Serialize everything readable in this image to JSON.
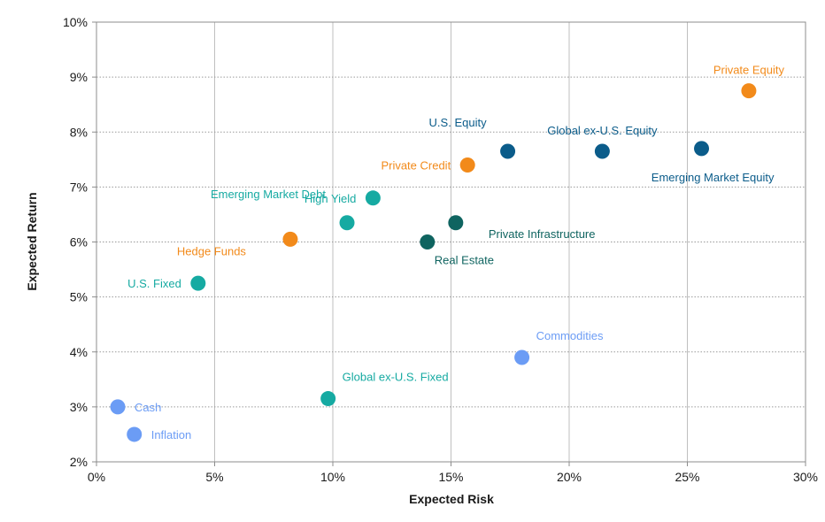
{
  "chart_data": {
    "type": "scatter",
    "title": "",
    "xlabel": "Expected Risk",
    "ylabel": "Expected Return",
    "xlim": [
      0,
      30
    ],
    "ylim": [
      2,
      10
    ],
    "x_ticks": [
      0,
      5,
      10,
      15,
      20,
      25,
      30
    ],
    "y_ticks": [
      2,
      3,
      4,
      5,
      6,
      7,
      8,
      9,
      10
    ],
    "x_tick_labels": [
      "0%",
      "5%",
      "10%",
      "15%",
      "20%",
      "25%",
      "30%"
    ],
    "y_tick_labels": [
      "2%",
      "3%",
      "4%",
      "5%",
      "6%",
      "7%",
      "8%",
      "9%",
      "10%"
    ],
    "grid": {
      "vertical": true,
      "horizontal": true
    },
    "colors": {
      "light_blue": "#6b9cf5",
      "teal": "#16aaa2",
      "orange": "#f28a1a",
      "dark_blue": "#0b5c8a",
      "dark_teal": "#0f6460"
    },
    "points": [
      {
        "name": "Cash",
        "x": 0.9,
        "y": 3.0,
        "color": "light_blue",
        "label_pos": "right"
      },
      {
        "name": "Inflation",
        "x": 1.6,
        "y": 2.5,
        "color": "light_blue",
        "label_pos": "right"
      },
      {
        "name": "U.S. Fixed",
        "x": 4.3,
        "y": 5.25,
        "color": "teal",
        "label_pos": "left"
      },
      {
        "name": "Hedge Funds",
        "x": 8.2,
        "y": 6.05,
        "color": "orange",
        "label_pos": "below-left"
      },
      {
        "name": "Global ex-U.S. Fixed",
        "x": 9.8,
        "y": 3.15,
        "color": "teal",
        "label_pos": "above-right"
      },
      {
        "name": "Emerging Market Debt",
        "x": 10.6,
        "y": 6.35,
        "color": "teal",
        "label_pos": "above-left"
      },
      {
        "name": "High Yield",
        "x": 11.7,
        "y": 6.8,
        "color": "teal",
        "label_pos": "left"
      },
      {
        "name": "Real Estate",
        "x": 14.0,
        "y": 6.0,
        "color": "dark_teal",
        "label_pos": "below-right"
      },
      {
        "name": "Private Infrastructure",
        "x": 15.2,
        "y": 6.35,
        "color": "dark_teal",
        "label_pos": "below-right"
      },
      {
        "name": "Private Credit",
        "x": 15.7,
        "y": 7.4,
        "color": "orange",
        "label_pos": "left"
      },
      {
        "name": "U.S. Equity",
        "x": 17.4,
        "y": 7.65,
        "color": "dark_blue",
        "label_pos": "above-left"
      },
      {
        "name": "Commodities",
        "x": 18.0,
        "y": 3.9,
        "color": "light_blue",
        "label_pos": "above-right"
      },
      {
        "name": "Global ex-U.S. Equity",
        "x": 21.4,
        "y": 7.65,
        "color": "dark_blue",
        "label_pos": "above"
      },
      {
        "name": "Emerging Market Equity",
        "x": 25.6,
        "y": 7.7,
        "color": "dark_blue",
        "label_pos": "below-left"
      },
      {
        "name": "Private Equity",
        "x": 27.6,
        "y": 8.75,
        "color": "orange",
        "label_pos": "above"
      }
    ]
  }
}
